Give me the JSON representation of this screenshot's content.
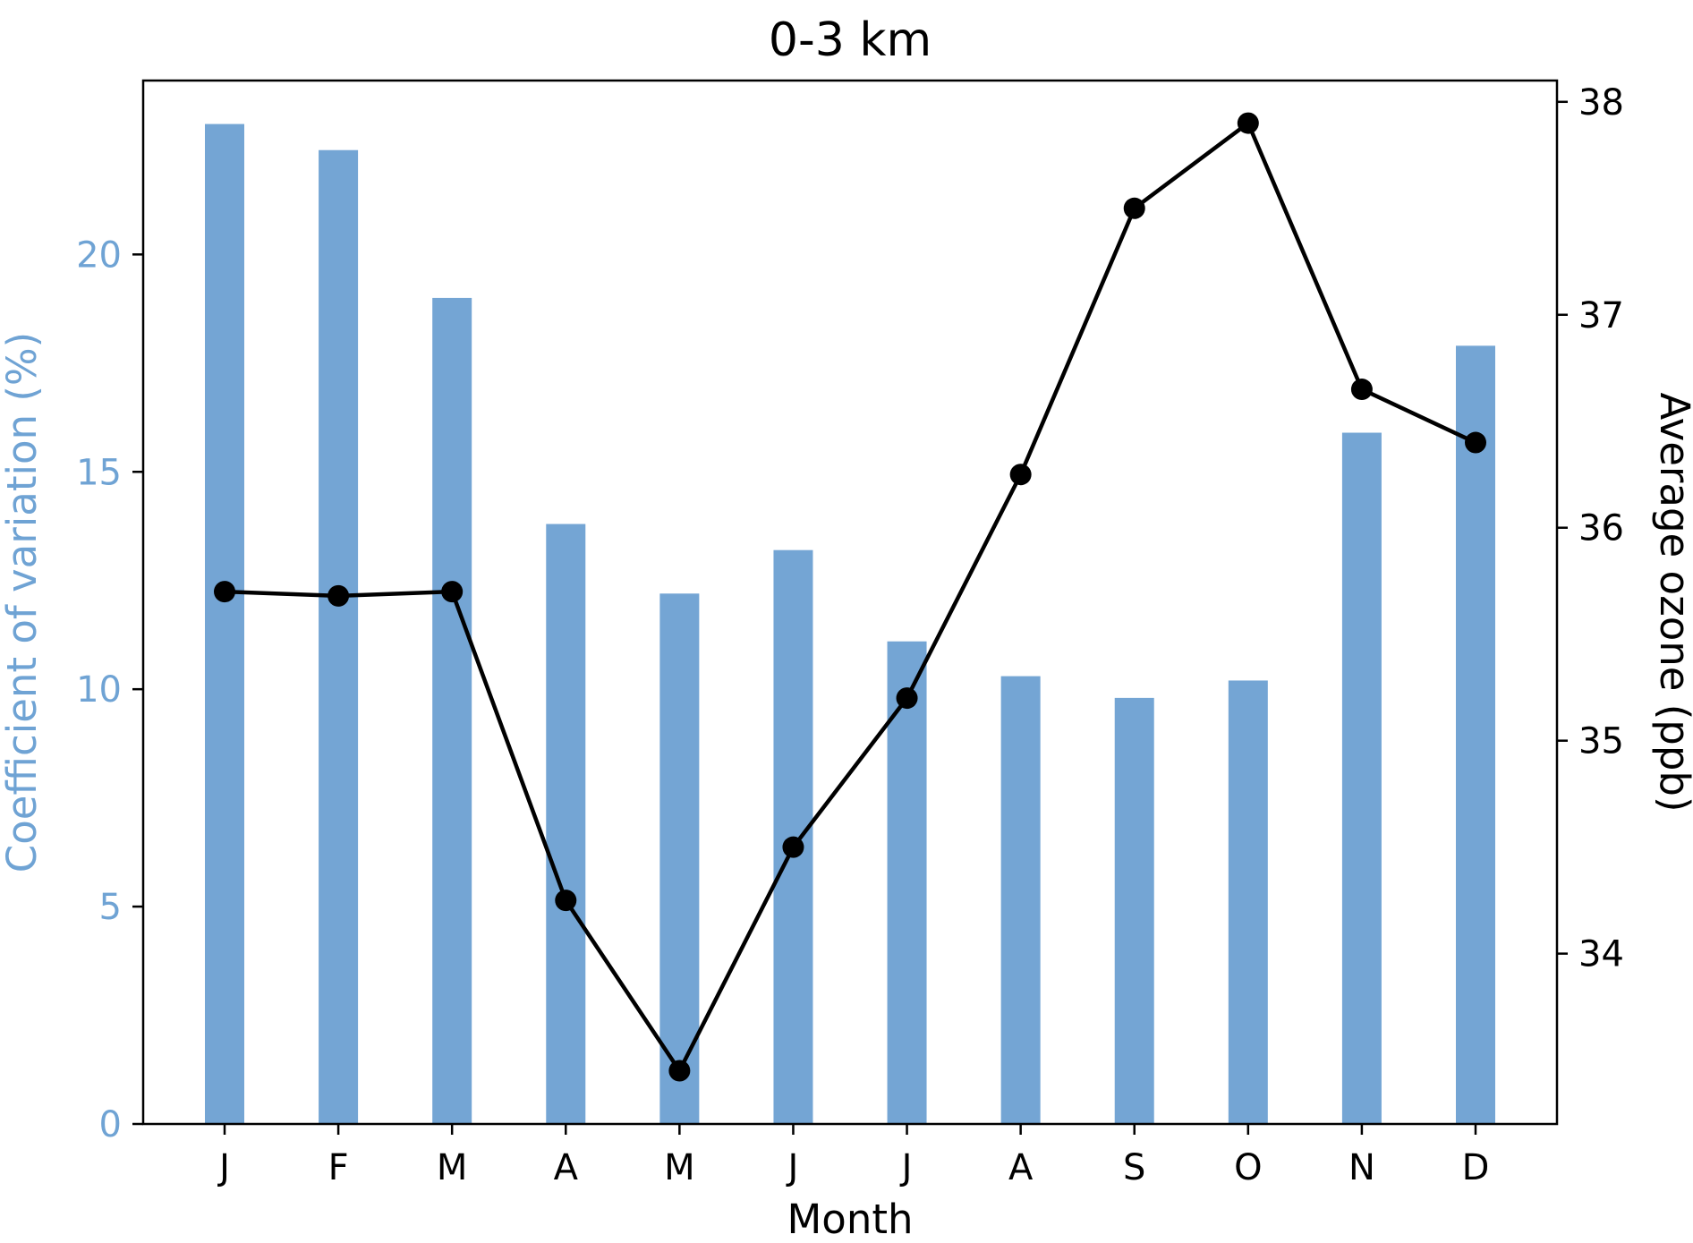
{
  "chart_data": {
    "type": "bar+line",
    "title": "0-3 km",
    "xlabel": "Month",
    "categories": [
      "J",
      "F",
      "M",
      "A",
      "M",
      "J",
      "J",
      "A",
      "S",
      "O",
      "N",
      "D"
    ],
    "left_axis": {
      "label": "Coefficient of variation (%)",
      "ticks": [
        0,
        5,
        10,
        15,
        20
      ],
      "ylim": [
        0,
        24
      ],
      "text_color": "#6fa3d4"
    },
    "right_axis": {
      "label": "Average ozone (ppb)",
      "ticks": [
        34,
        35,
        36,
        37,
        38
      ],
      "ylim": [
        33.2,
        38.1
      ],
      "text_color": "#000000"
    },
    "series": [
      {
        "name": "Coefficient of variation",
        "type": "bar",
        "axis": "left",
        "color": "#74a5d4",
        "values": [
          23.0,
          22.4,
          19.0,
          13.8,
          12.2,
          13.2,
          11.1,
          10.3,
          9.8,
          10.2,
          15.9,
          17.9
        ]
      },
      {
        "name": "Average ozone",
        "type": "line",
        "axis": "right",
        "color": "#000000",
        "values": [
          35.7,
          35.68,
          35.7,
          34.25,
          33.45,
          34.5,
          35.2,
          36.25,
          37.5,
          37.9,
          36.65,
          36.4
        ]
      }
    ],
    "colors": {
      "spine": "#000000",
      "background": "#ffffff"
    }
  }
}
